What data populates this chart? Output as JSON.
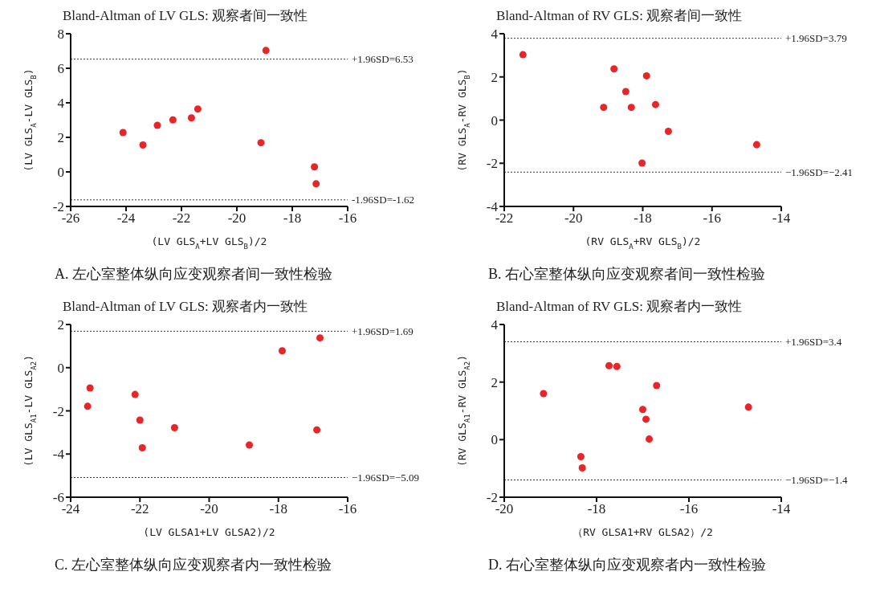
{
  "chart_data": [
    {
      "type": "scatter",
      "title": "Bland-Altman of LV GLS: 观察者间一致性",
      "xlabel": "(LV GLS$_{A}$+LV GLS$_{B}$)/2",
      "ylabel": "(LV GLS$_{A}$-LV GLS$_{B}$)",
      "annotations": [
        "A. 左心室整体纵向应变观察者间一致性检验"
      ],
      "marker": "circle",
      "grid": false,
      "legend": false,
      "series": [
        {
          "color": "#e8262a",
          "x": [
            -24.11,
            -23.39,
            -22.87,
            -22.31,
            -21.64,
            -21.41,
            -19.13,
            -18.95,
            -17.2,
            -17.14
          ],
          "values": [
            2.28,
            1.56,
            2.7,
            3.01,
            3.13,
            3.64,
            1.69,
            7.03,
            0.29,
            -0.69
          ]
        }
      ],
      "xlim": [
        -26,
        -16
      ],
      "xticks": [
        -26,
        -24,
        -22,
        -20,
        -18,
        -16
      ],
      "ylim": [
        -2,
        8
      ],
      "yticks": [
        -2,
        0,
        2,
        4,
        6,
        8
      ],
      "ref_lines": [
        {
          "axis": "y",
          "value": 6.53,
          "label": "+1.96SD=6.53",
          "color": "#333333",
          "line_style": "dotted"
        },
        {
          "axis": "y",
          "value": -1.62,
          "label": "-1.96SD=-1.62",
          "color": "#333333",
          "line_style": "dotted"
        }
      ]
    },
    {
      "type": "scatter",
      "title": "Bland-Altman of RV GLS: 观察者间一致性",
      "xlabel": "(RV GLS$_{A}$+RV GLS$_{B}$)/2",
      "ylabel": "(RV GLS$_{A}$-RV GLS$_{B}$)",
      "annotations": [
        "B. 右心室整体纵向应变观察者间一致性检验"
      ],
      "marker": "circle",
      "grid": false,
      "legend": false,
      "series": [
        {
          "color": "#e8262a",
          "x": [
            -21.46,
            -18.83,
            -17.89,
            -18.49,
            -19.13,
            -18.33,
            -17.63,
            -17.26,
            -14.71,
            -18.02
          ],
          "values": [
            3.03,
            2.37,
            2.05,
            1.32,
            0.59,
            0.59,
            0.72,
            -0.52,
            -1.14,
            -1.99
          ]
        }
      ],
      "xlim": [
        -22,
        -14
      ],
      "xticks": [
        -22,
        -20,
        -18,
        -16,
        -14
      ],
      "ylim": [
        -4,
        4
      ],
      "yticks": [
        -4,
        -2,
        0,
        2,
        4
      ],
      "ref_lines": [
        {
          "axis": "y",
          "value": 3.79,
          "label": "+1.96SD=3.79",
          "color": "#333333",
          "line_style": "dotted"
        },
        {
          "axis": "y",
          "value": -2.41,
          "label": "−1.96SD=−2.41",
          "color": "#333333",
          "line_style": "dotted"
        }
      ]
    },
    {
      "type": "scatter",
      "title": "Bland-Altman of LV GLS: 观察者内一致性",
      "xlabel": "(LV GLSA1+LV GLSA2)/2",
      "ylabel": "(LV GLS$_{A1}$-LV GLS$_{A2}$)",
      "annotations": [
        "C. 左心室整体纵向应变观察者内一致性检验"
      ],
      "marker": "circle",
      "grid": false,
      "legend": false,
      "series": [
        {
          "color": "#e8262a",
          "x": [
            -23.44,
            -23.51,
            -22.14,
            -22.0,
            -21.0,
            -21.93,
            -18.84,
            -17.89,
            -16.8,
            -16.89
          ],
          "values": [
            -0.94,
            -1.79,
            -1.24,
            -2.43,
            -2.78,
            -3.71,
            -3.58,
            0.78,
            1.38,
            -2.88
          ]
        }
      ],
      "xlim": [
        -24,
        -16
      ],
      "xticks": [
        -24,
        -22,
        -20,
        -18,
        -16
      ],
      "ylim": [
        -6,
        2
      ],
      "yticks": [
        -6,
        -4,
        -2,
        0,
        2
      ],
      "ref_lines": [
        {
          "axis": "y",
          "value": 1.69,
          "label": "+1.96SD=1.69",
          "color": "#333333",
          "line_style": "dotted"
        },
        {
          "axis": "y",
          "value": -5.09,
          "label": "−1.96SD=−5.09",
          "color": "#333333",
          "line_style": "dotted"
        }
      ]
    },
    {
      "type": "scatter",
      "title": "Bland-Altman of RV GLS: 观察者内一致性",
      "xlabel": "（RV GLSA1+RV GLSA2）/2",
      "ylabel": "(RV GLS$_{A1}$-RV GLS$_{A2}$)",
      "annotations": [
        "D. 右心室整体纵向应变观察者内一致性检验"
      ],
      "marker": "circle",
      "grid": false,
      "legend": false,
      "series": [
        {
          "color": "#e8262a",
          "x": [
            -19.15,
            -17.73,
            -17.56,
            -16.7,
            -17.0,
            -16.93,
            -16.86,
            -14.71,
            -18.34,
            -18.31
          ],
          "values": [
            1.6,
            2.57,
            2.54,
            1.88,
            1.05,
            0.71,
            0.02,
            1.13,
            -0.59,
            -0.98
          ]
        }
      ],
      "xlim": [
        -20,
        -14
      ],
      "xticks": [
        -20,
        -18,
        -16,
        -14
      ],
      "ylim": [
        -2,
        4
      ],
      "yticks": [
        -2,
        0,
        2,
        4
      ],
      "ref_lines": [
        {
          "axis": "y",
          "value": 3.4,
          "label": "+1.96SD=3.4",
          "color": "#333333",
          "line_style": "dotted"
        },
        {
          "axis": "y",
          "value": -1.4,
          "label": "−1.96SD=−1.4",
          "color": "#333333",
          "line_style": "dotted"
        }
      ]
    }
  ]
}
